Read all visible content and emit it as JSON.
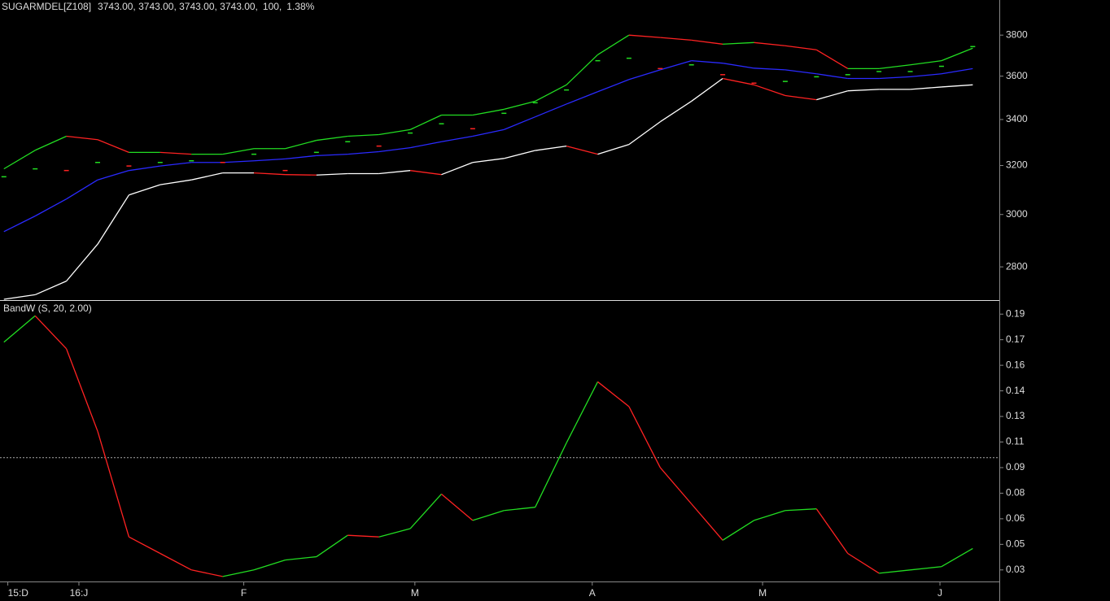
{
  "chart_data": [
    {
      "type": "line",
      "log_scale": true,
      "title": "SUGARMDEL[Z108]",
      "quote": "3743.00,  3743.00,  3743.00,  3743.00,",
      "volume": "100,",
      "change": "1.38%",
      "xlim": [
        -0.5,
        127.4
      ],
      "ylim": [
        2680,
        3980
      ],
      "yticks": [
        2800,
        3000,
        3200,
        3400,
        3600,
        3800
      ],
      "x": [
        0,
        4,
        8,
        12,
        16,
        20,
        24,
        28,
        32,
        36,
        40,
        44,
        48,
        52,
        56,
        60,
        64,
        68,
        72,
        76,
        80,
        84,
        88,
        92,
        96,
        100,
        104,
        108,
        112,
        116,
        120,
        124
      ],
      "series": [
        {
          "style": "line",
          "up_color": "#22dd22",
          "down_color": "#ff2222",
          "values": [
            3186,
            3265,
            3326,
            3311,
            3256,
            3256,
            3248,
            3248,
            3272,
            3272,
            3308,
            3326,
            3333,
            3355,
            3420,
            3420,
            3446,
            3483,
            3559,
            3703,
            3800,
            3788,
            3775,
            3755,
            3763,
            3747,
            3727,
            3636,
            3636,
            3654,
            3674,
            3735
          ]
        },
        {
          "style": "line",
          "up_color": "#ffffff",
          "down_color": "#ff2222",
          "values": [
            2683,
            2699,
            2748,
            2885,
            3078,
            3120,
            3140,
            3169,
            3169,
            3162,
            3160,
            3166,
            3166,
            3179,
            3162,
            3213,
            3230,
            3264,
            3283,
            3248,
            3290,
            3390,
            3483,
            3589,
            3559,
            3509,
            3490,
            3531,
            3538,
            3538,
            3549,
            3559
          ]
        },
        {
          "style": "line",
          "color": "#2a2aff",
          "values": [
            2933,
            2994,
            3062,
            3140,
            3179,
            3198,
            3213,
            3213,
            3220,
            3228,
            3242,
            3248,
            3259,
            3276,
            3302,
            3326,
            3355,
            3412,
            3470,
            3527,
            3584,
            3630,
            3674,
            3662,
            3638,
            3630,
            3611,
            3589,
            3589,
            3597,
            3611,
            3636
          ]
        },
        {
          "style": "dash",
          "up_color": "#22dd22",
          "down_color": "#ff2222",
          "values": [
            3153,
            3186,
            3179,
            3213,
            3198,
            3213,
            3220,
            3213,
            3248,
            3179,
            3256,
            3302,
            3283,
            3340,
            3381,
            3359,
            3428,
            3476,
            3535,
            3674,
            3686,
            3636,
            3654,
            3607,
            3567,
            3575,
            3597,
            3607,
            3622,
            3622,
            3647,
            3743
          ]
        }
      ]
    },
    {
      "type": "line",
      "log_scale": false,
      "title": "BandW  (S, 20, 2.00)",
      "title_color": "#22dd22",
      "xlim": [
        -0.5,
        127.4
      ],
      "ylim": [
        0.025,
        0.195
      ],
      "yticks": [
        {
          "value": 0.032,
          "label": "0.03"
        },
        {
          "value": 0.0475,
          "label": "0.05"
        },
        {
          "value": 0.063,
          "label": "0.06"
        },
        {
          "value": 0.0785,
          "label": "0.08"
        },
        {
          "value": 0.094,
          "label": "0.09"
        },
        {
          "value": 0.1095,
          "label": "0.11"
        },
        {
          "value": 0.125,
          "label": "0.13"
        },
        {
          "value": 0.1405,
          "label": "0.14"
        },
        {
          "value": 0.156,
          "label": "0.16"
        },
        {
          "value": 0.1715,
          "label": "0.17"
        },
        {
          "value": 0.187,
          "label": "0.19"
        }
      ],
      "xticks": [
        {
          "value": 0.5,
          "label": "15:D"
        },
        {
          "value": 9.6,
          "label": "16:J"
        },
        {
          "value": 30.7,
          "label": "F"
        },
        {
          "value": 52.6,
          "label": "M"
        },
        {
          "value": 75.3,
          "label": "A"
        },
        {
          "value": 97.1,
          "label": "M"
        },
        {
          "value": 119.8,
          "label": "J"
        }
      ],
      "reference_line": 0.1,
      "x": [
        0,
        4,
        8,
        12,
        16,
        20,
        24,
        28,
        32,
        36,
        40,
        44,
        48,
        52,
        56,
        60,
        64,
        68,
        72,
        76,
        80,
        84,
        88,
        92,
        96,
        100,
        104,
        108,
        112,
        116,
        120,
        124
      ],
      "series": [
        {
          "style": "line",
          "up_color": "#22dd22",
          "down_color": "#ff2222",
          "values": [
            0.17,
            0.186,
            0.166,
            0.116,
            0.052,
            0.042,
            0.032,
            0.028,
            0.032,
            0.038,
            0.04,
            0.053,
            0.052,
            0.057,
            0.078,
            0.062,
            0.068,
            0.07,
            0.109,
            0.146,
            0.131,
            0.094,
            0.072,
            0.05,
            0.062,
            0.068,
            0.069,
            0.042,
            0.03,
            0.032,
            0.034,
            0.045
          ]
        }
      ]
    }
  ]
}
